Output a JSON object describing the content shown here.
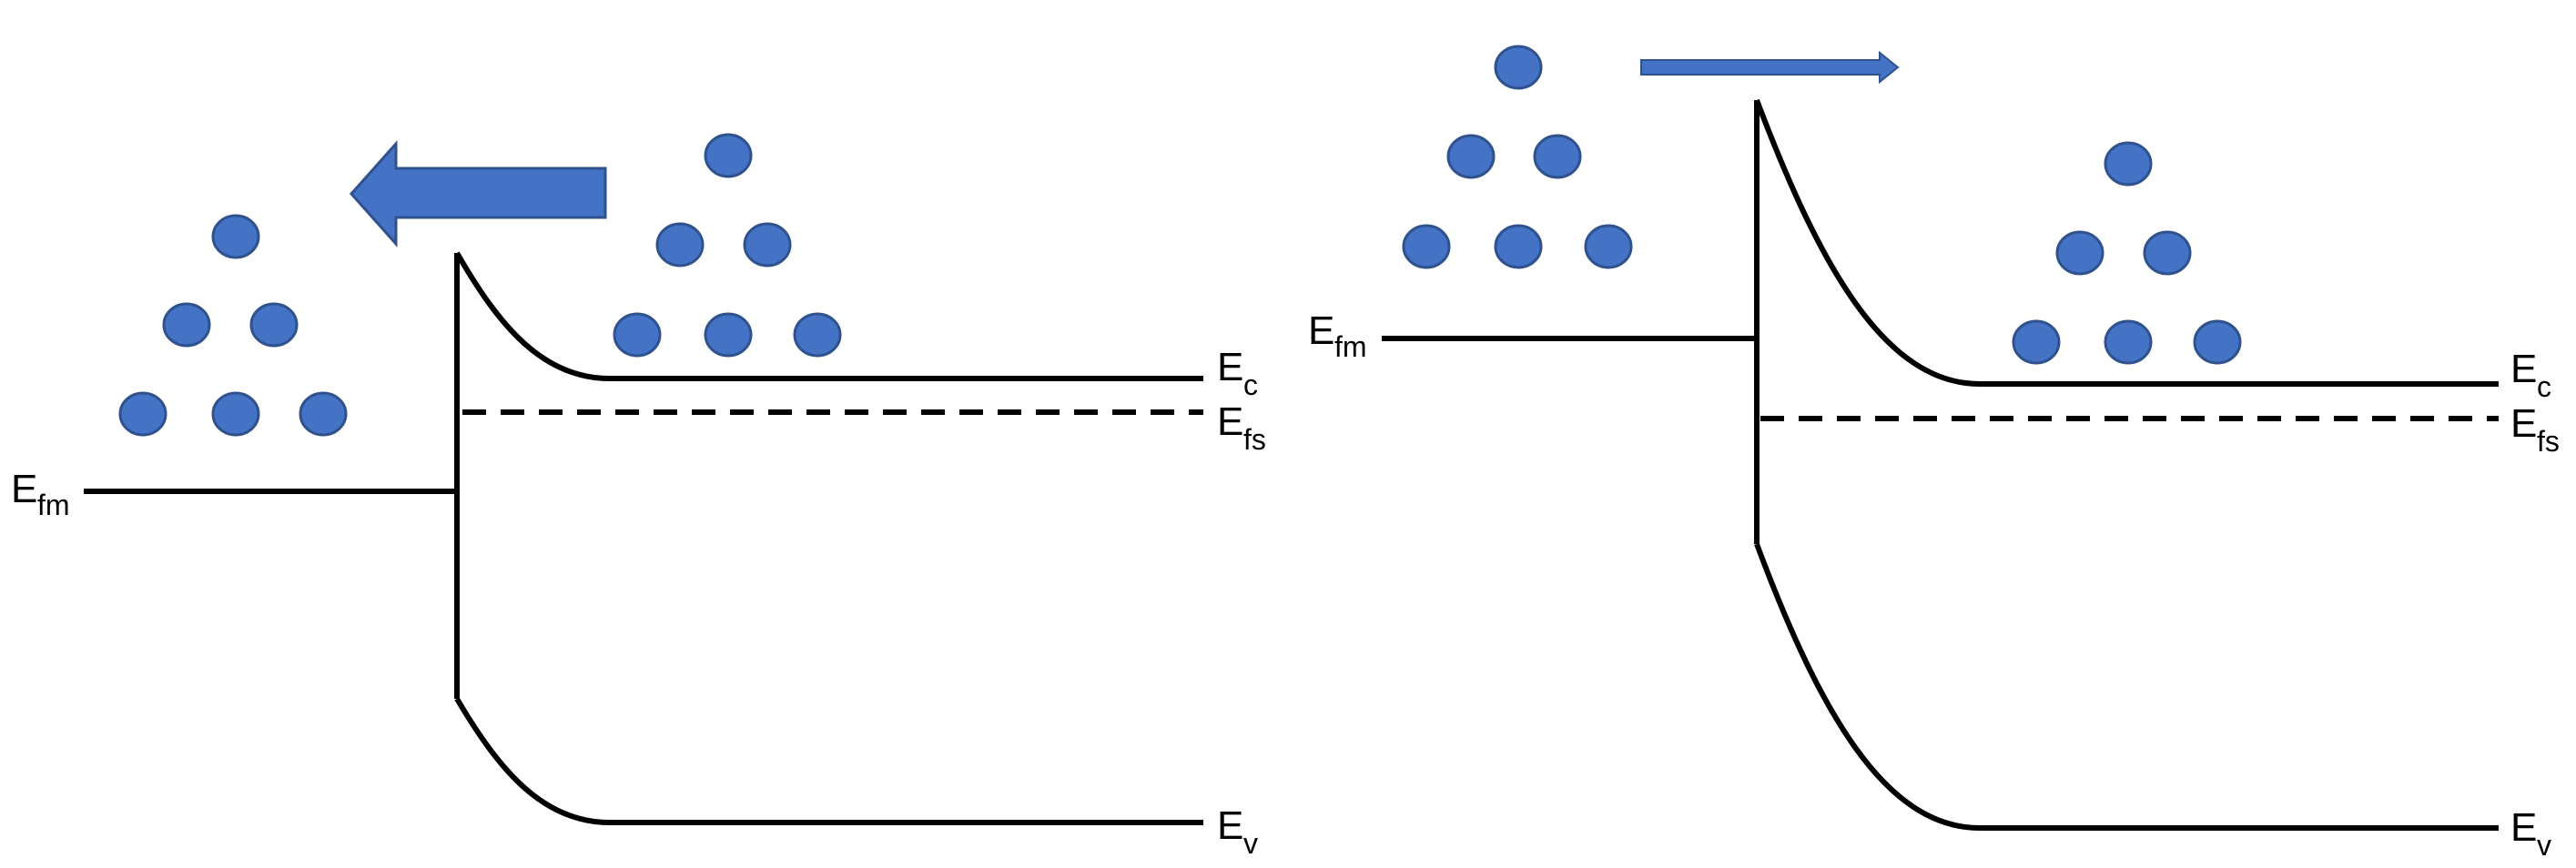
{
  "colors": {
    "line": "#000000",
    "electron_fill": "#4472C4",
    "electron_stroke": "#2F528F",
    "arrow_fill": "#4472C4",
    "arrow_stroke": "#2F528F"
  },
  "panels": [
    {
      "id": "left",
      "labels": {
        "ec": {
          "main": "E",
          "sub": "c"
        },
        "efs": {
          "main": "E",
          "sub": "fs"
        },
        "ev": {
          "main": "E",
          "sub": "v"
        },
        "efm": {
          "main": "E",
          "sub": "fm"
        }
      },
      "arrow": {
        "direction": "left",
        "style": "block"
      },
      "electron_groups": 2
    },
    {
      "id": "right",
      "labels": {
        "ec": {
          "main": "E",
          "sub": "c"
        },
        "efs": {
          "main": "E",
          "sub": "fs"
        },
        "ev": {
          "main": "E",
          "sub": "v"
        },
        "efm": {
          "main": "E",
          "sub": "fm"
        }
      },
      "arrow": {
        "direction": "right",
        "style": "thin"
      },
      "electron_groups": 2
    }
  ]
}
